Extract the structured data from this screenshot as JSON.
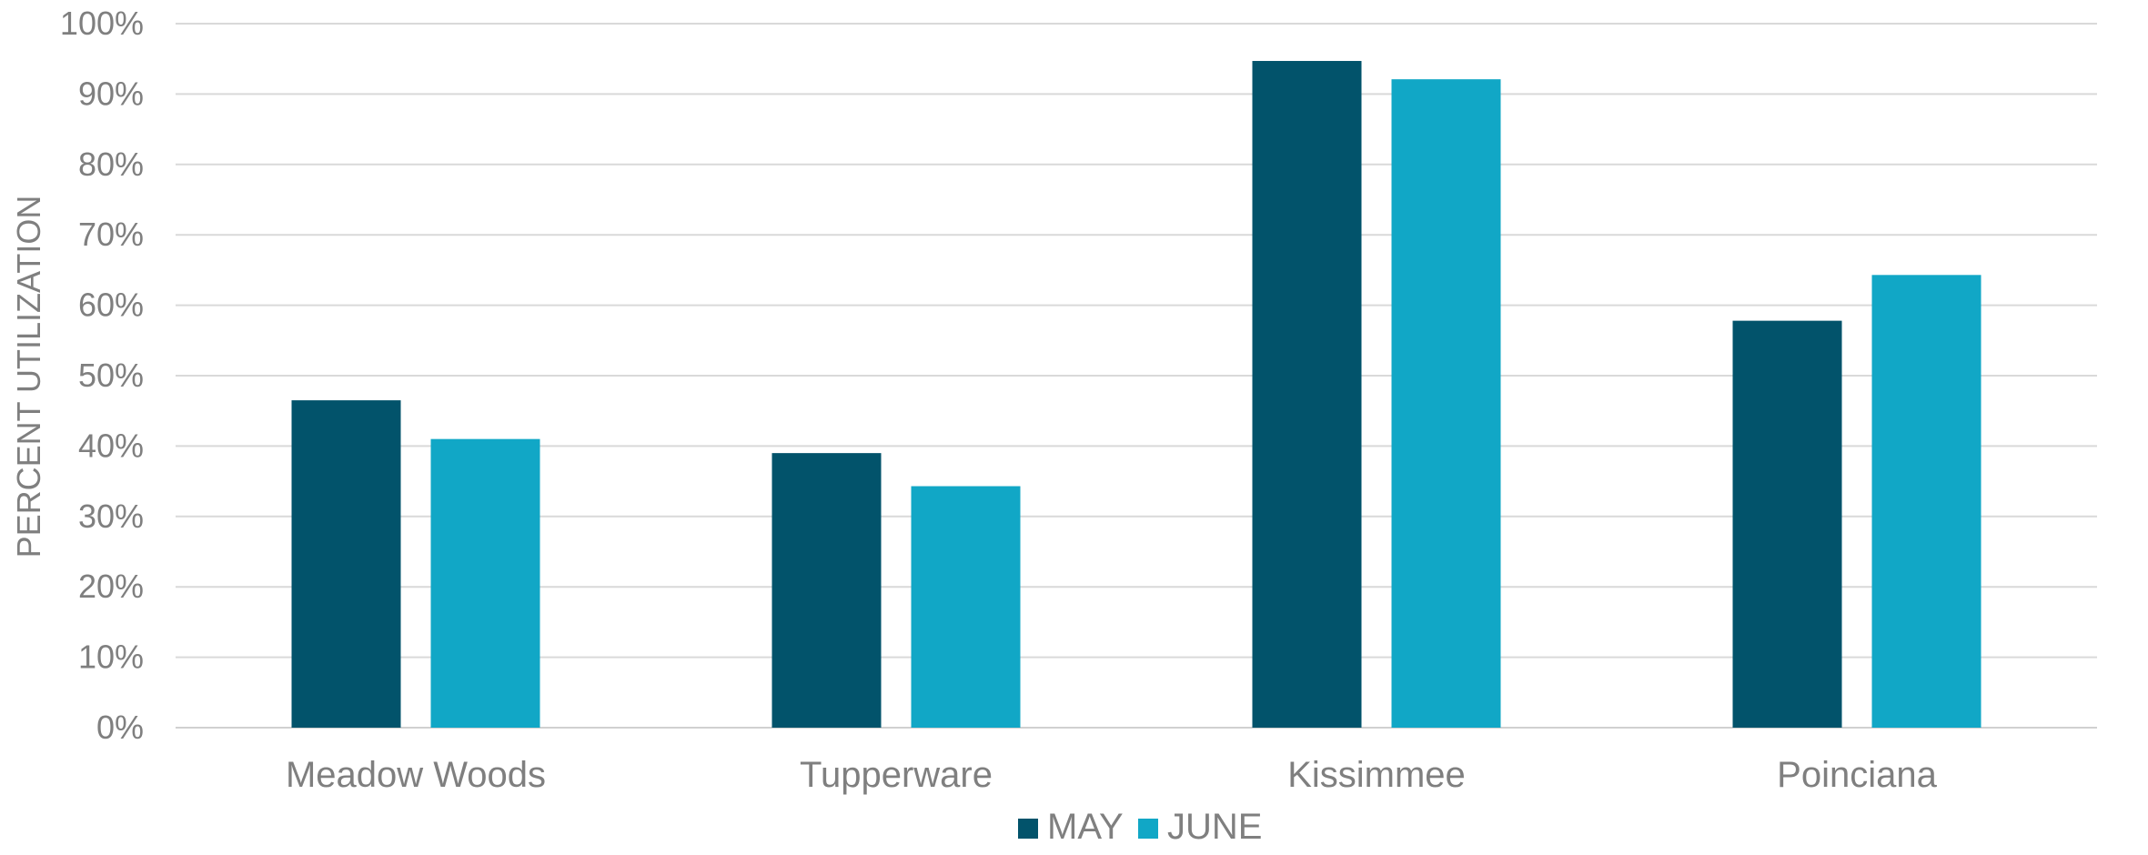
{
  "chart_data": {
    "type": "bar",
    "categories": [
      "Meadow Woods",
      "Tupperware",
      "Kissimmee",
      "Poinciana"
    ],
    "series": [
      {
        "name": "MAY",
        "values": [
          46.5,
          39,
          94.7,
          57.8
        ],
        "color": "#02536b"
      },
      {
        "name": "JUNE",
        "values": [
          41,
          34.3,
          92.1,
          64.3
        ],
        "color": "#11a7c6"
      }
    ],
    "xlabel": "",
    "ylabel": "PERCENT UTILIZATION",
    "ylim": [
      0,
      100
    ],
    "yticks": [
      "0%",
      "10%",
      "20%",
      "30%",
      "40%",
      "50%",
      "60%",
      "70%",
      "80%",
      "90%",
      "100%"
    ],
    "grid": true,
    "legend_position": "bottom"
  }
}
